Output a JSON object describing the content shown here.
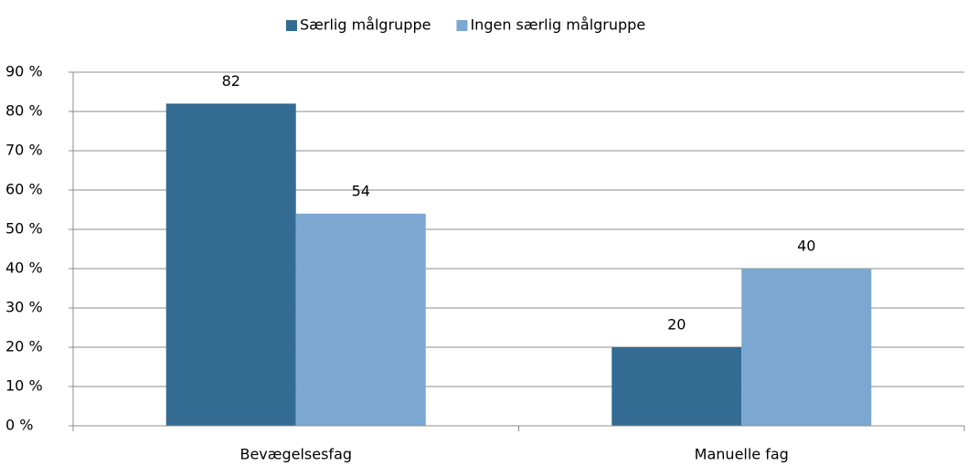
{
  "chart_data": {
    "type": "bar",
    "categories": [
      "Bevægelsesfag",
      "Manuelle fag"
    ],
    "series": [
      {
        "name": "Særlig målgruppe",
        "color": "#336b93",
        "values": [
          82,
          20
        ]
      },
      {
        "name": "Ingen særlig målgruppe",
        "color": "#7ba7d0",
        "values": [
          54,
          40
        ]
      }
    ],
    "ylim": [
      0,
      90
    ],
    "yticks": [
      {
        "value": 0,
        "label": "0 %"
      },
      {
        "value": 10,
        "label": "10 %"
      },
      {
        "value": 20,
        "label": "20 %"
      },
      {
        "value": 30,
        "label": "30 %"
      },
      {
        "value": 40,
        "label": "40 %"
      },
      {
        "value": 50,
        "label": "50 %"
      },
      {
        "value": 60,
        "label": "60 %"
      },
      {
        "value": 70,
        "label": "70 %"
      },
      {
        "value": 80,
        "label": "80 %"
      },
      {
        "value": 90,
        "label": "90 %"
      }
    ],
    "grid": true,
    "legend": "top"
  }
}
